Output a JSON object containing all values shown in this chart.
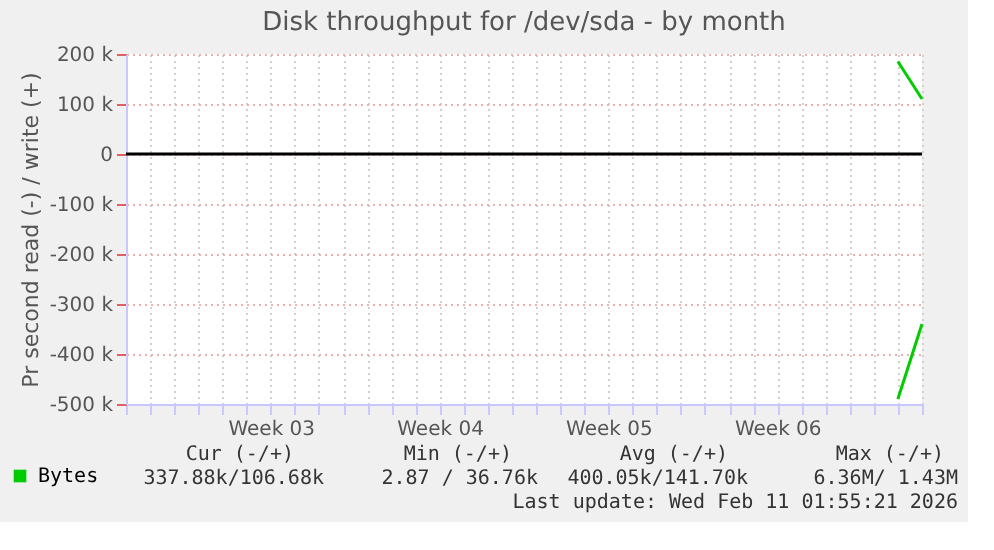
{
  "chart_data": {
    "type": "line",
    "title": "Disk throughput for /dev/sda - by month",
    "ylabel": "Pr second read (-) / write (+)",
    "categories": [
      null,
      null,
      null,
      null,
      null,
      null,
      "Week 03",
      null,
      null,
      null,
      null,
      null,
      null,
      "Week 04",
      null,
      null,
      null,
      null,
      null,
      null,
      "Week 05",
      null,
      null,
      null,
      null,
      null,
      null,
      "Week 06",
      null,
      null,
      null,
      null,
      null,
      null
    ],
    "ylim": [
      -500000,
      200000
    ],
    "yticks": [
      {
        "value": -500000,
        "label": "-500 k"
      },
      {
        "value": -400000,
        "label": "-400 k"
      },
      {
        "value": -300000,
        "label": "-300 k"
      },
      {
        "value": -200000,
        "label": "-200 k"
      },
      {
        "value": -100000,
        "label": "-100 k"
      },
      0,
      {
        "value": 100000,
        "label": "100 k"
      },
      {
        "value": 200000,
        "label": "200 k"
      }
    ],
    "series": [
      {
        "name": "Bytes",
        "color": "#00cc00",
        "values": [
          null,
          null,
          null,
          null,
          null,
          null,
          null,
          null,
          null,
          null,
          null,
          null,
          null,
          null,
          null,
          null,
          null,
          null,
          null,
          null,
          null,
          null,
          null,
          null,
          null,
          null,
          null,
          null,
          null,
          null,
          null,
          null,
          185000,
          110000
        ]
      },
      {
        "color": "#00cc00",
        "values": [
          null,
          null,
          null,
          null,
          null,
          null,
          null,
          null,
          null,
          null,
          null,
          null,
          null,
          null,
          null,
          null,
          null,
          null,
          null,
          null,
          null,
          null,
          null,
          null,
          null,
          null,
          null,
          null,
          null,
          null,
          null,
          null,
          -490000,
          -340000
        ]
      }
    ],
    "ref_lines": [
      {
        "axis": "y",
        "value": 0,
        "color": "#000000"
      }
    ],
    "grid": true,
    "legend": "bottom",
    "marker": "none",
    "line_style": "solid",
    "annotations": [
      "Cur (-/+)",
      "Min (-/+)",
      "Avg (-/+)",
      "Max (-/+)",
      "337.88k/106.68k",
      "2.87 / 36.76k",
      "400.05k/141.70k",
      "6.36M/  1.43M",
      "Last update: Wed Feb 11 01:55:21 2026"
    ]
  }
}
